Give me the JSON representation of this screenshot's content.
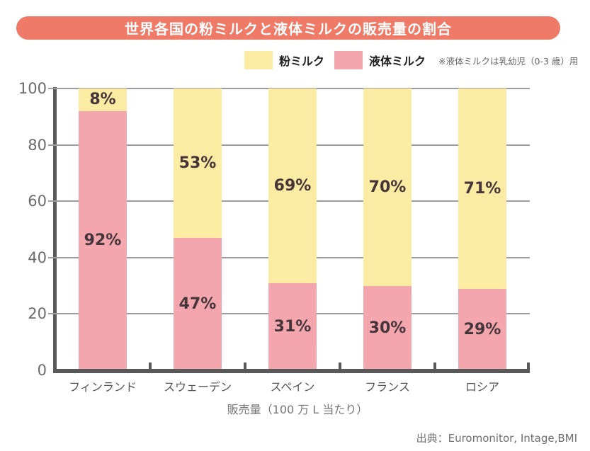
{
  "title": "世界各国の粉ミルクと液体ミルクの販売量の割合",
  "legend": {
    "items": [
      {
        "label": "粉ミルク",
        "color": "#fceba3"
      },
      {
        "label": "液体ミルク",
        "color": "#f3a6ae"
      }
    ],
    "note": "※液体ミルクは乳幼児（0-3 歳）用"
  },
  "chart_data": {
    "type": "bar",
    "stacked": true,
    "title": "世界各国の粉ミルクと液体ミルクの販売量の割合",
    "categories": [
      "フィンランド",
      "スウェーデン",
      "スペイン",
      "フランス",
      "ロシア"
    ],
    "series": [
      {
        "name": "粉ミルク",
        "color": "#fceba3",
        "values": [
          8,
          53,
          69,
          70,
          71
        ]
      },
      {
        "name": "液体ミルク",
        "color": "#f3a6ae",
        "values": [
          92,
          47,
          31,
          30,
          29
        ]
      }
    ],
    "series_order": "top-to-bottom",
    "value_suffix": "%",
    "ylim": [
      0,
      100
    ],
    "y_ticks": [
      0,
      20,
      40,
      60,
      80,
      100
    ],
    "grid": true,
    "legend_position": "top",
    "xlabel": "販売量（100 万 L 当たり）"
  },
  "source": "出典：Euromonitor, Intage,BMI",
  "colors": {
    "title_bg": "#ee7a67",
    "title_text": "#ffffff",
    "powder_milk": "#fceba3",
    "liquid_milk": "#f3a6ae",
    "value_label": "#46363a",
    "axis": "#595959",
    "gridline": "#9e9e9e",
    "tick_label": "#6b6b6b"
  }
}
